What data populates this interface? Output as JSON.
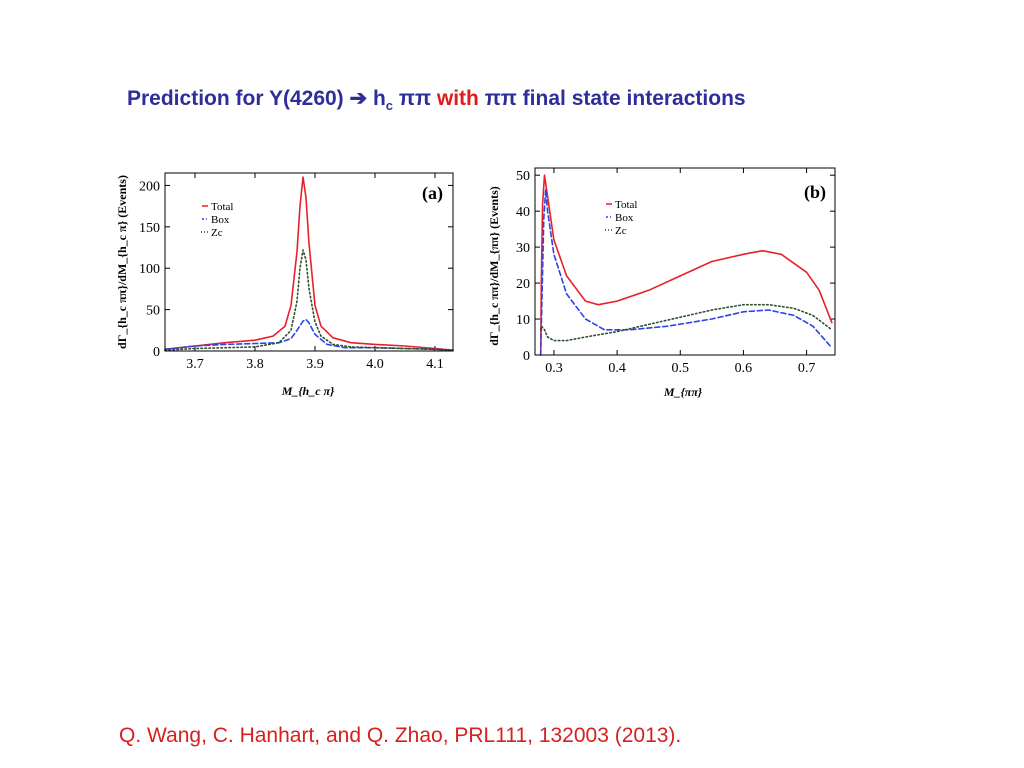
{
  "slide": {
    "title_parts": [
      "Prediction for Y(4260) ",
      "➔",
      " h",
      "c",
      " ππ ",
      "with",
      " ππ final state interactions"
    ],
    "citation": "Q. Wang, C. Hanhart, and Q. Zhao, PRL111, 132003 (2013)."
  },
  "colors": {
    "total": "#e8202a",
    "box": "#2b44e8",
    "zc": "#2f4f2f",
    "title": "#2e2e9a",
    "title_accent": "#e01b1b",
    "citation": "#d6201f"
  },
  "chart_data": [
    {
      "type": "line",
      "panel_label": "(a)",
      "ylabel": "dΓ_{h_c ππ}/dM_{h_c π} (Events)",
      "xlabel": "M_{h_c π}",
      "xlim": [
        3.65,
        4.13
      ],
      "ylim": [
        0,
        215
      ],
      "xticks": [
        "3.7",
        "3.8",
        "3.9",
        "4.0",
        "4.1"
      ],
      "yticks": [
        "0",
        "50",
        "100",
        "150",
        "200"
      ],
      "legend": [
        "Total",
        "Box",
        "Zc"
      ],
      "legend_position": "top-left",
      "series": [
        {
          "name": "Total",
          "style": "solid",
          "x": [
            3.65,
            3.7,
            3.75,
            3.8,
            3.83,
            3.85,
            3.86,
            3.87,
            3.875,
            3.88,
            3.885,
            3.89,
            3.9,
            3.91,
            3.93,
            3.96,
            4.0,
            4.05,
            4.1,
            4.13
          ],
          "y": [
            2,
            6,
            10,
            13,
            18,
            30,
            55,
            120,
            175,
            210,
            185,
            130,
            55,
            30,
            16,
            10,
            8,
            6,
            3,
            1
          ]
        },
        {
          "name": "Box",
          "style": "dashed",
          "x": [
            3.65,
            3.7,
            3.75,
            3.8,
            3.84,
            3.86,
            3.87,
            3.88,
            3.885,
            3.89,
            3.9,
            3.92,
            3.95,
            4.0,
            4.05,
            4.1,
            4.13
          ],
          "y": [
            2,
            6,
            8,
            9,
            10,
            15,
            25,
            36,
            38,
            34,
            20,
            8,
            4,
            4,
            3,
            2,
            1
          ]
        },
        {
          "name": "Zc",
          "style": "dotted",
          "x": [
            3.65,
            3.7,
            3.75,
            3.8,
            3.84,
            3.86,
            3.87,
            3.875,
            3.88,
            3.885,
            3.89,
            3.9,
            3.91,
            3.93,
            3.96,
            4.0,
            4.05,
            4.1,
            4.13
          ],
          "y": [
            1,
            3,
            4,
            5,
            10,
            25,
            60,
            100,
            122,
            110,
            75,
            35,
            18,
            8,
            5,
            4,
            3,
            2,
            1
          ]
        }
      ]
    },
    {
      "type": "line",
      "panel_label": "(b)",
      "ylabel": "dΓ_{h_c ππ}/dM_{ππ} (Events)",
      "xlabel": "M_{ππ}",
      "xlim": [
        0.27,
        0.745
      ],
      "ylim": [
        0,
        52
      ],
      "xticks": [
        "0.3",
        "0.4",
        "0.5",
        "0.6",
        "0.7"
      ],
      "yticks": [
        "0",
        "10",
        "20",
        "30",
        "40",
        "50"
      ],
      "legend": [
        "Total",
        "Box",
        "Zc"
      ],
      "legend_position": "top-center",
      "series": [
        {
          "name": "Total",
          "style": "solid",
          "x": [
            0.279,
            0.28,
            0.282,
            0.285,
            0.29,
            0.3,
            0.32,
            0.35,
            0.37,
            0.4,
            0.45,
            0.5,
            0.55,
            0.6,
            0.63,
            0.66,
            0.7,
            0.72,
            0.74
          ],
          "y": [
            0,
            20,
            42,
            50,
            44,
            32,
            22,
            15,
            14,
            15,
            18,
            22,
            26,
            28,
            29,
            28,
            23,
            18,
            9
          ]
        },
        {
          "name": "Box",
          "style": "dashed",
          "x": [
            0.279,
            0.281,
            0.284,
            0.287,
            0.29,
            0.3,
            0.32,
            0.35,
            0.38,
            0.42,
            0.48,
            0.55,
            0.6,
            0.64,
            0.68,
            0.71,
            0.74
          ],
          "y": [
            0,
            15,
            38,
            46,
            40,
            28,
            17,
            10,
            7,
            7,
            8,
            10,
            12,
            12.5,
            11,
            8,
            2
          ]
        },
        {
          "name": "Zc",
          "style": "dotted",
          "x": [
            0.279,
            0.28,
            0.285,
            0.29,
            0.3,
            0.32,
            0.35,
            0.4,
            0.45,
            0.5,
            0.55,
            0.6,
            0.64,
            0.68,
            0.71,
            0.74
          ],
          "y": [
            7,
            8,
            7,
            5,
            4,
            4,
            5,
            6.5,
            8.5,
            10.5,
            12.5,
            14,
            14,
            13,
            11,
            7
          ]
        }
      ]
    }
  ]
}
